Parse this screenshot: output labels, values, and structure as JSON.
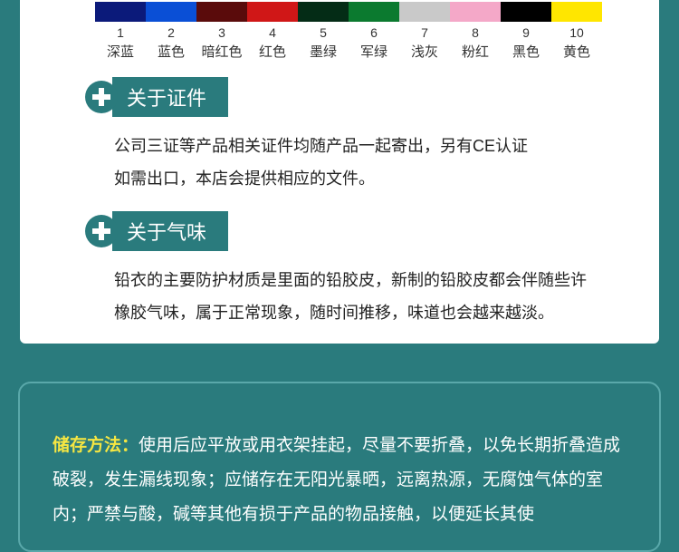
{
  "colors": {
    "swatches": [
      {
        "num": "1",
        "name": "深蓝",
        "hex": "#0b1a7a"
      },
      {
        "num": "2",
        "name": "蓝色",
        "hex": "#0a4fd6"
      },
      {
        "num": "3",
        "name": "暗红色",
        "hex": "#5a0b0b"
      },
      {
        "num": "4",
        "name": "红色",
        "hex": "#d01717"
      },
      {
        "num": "5",
        "name": "墨绿",
        "hex": "#042c16"
      },
      {
        "num": "6",
        "name": "军绿",
        "hex": "#0b7a2f"
      },
      {
        "num": "7",
        "name": "浅灰",
        "hex": "#c9c9c9"
      },
      {
        "num": "8",
        "name": "粉红",
        "hex": "#f4a8c8"
      },
      {
        "num": "9",
        "name": "黑色",
        "hex": "#000000"
      },
      {
        "num": "10",
        "name": "黄色",
        "hex": "#ffe600"
      }
    ]
  },
  "sections": {
    "cert": {
      "title": "关于证件",
      "body_line1": "公司三证等产品相关证件均随产品一起寄出，另有CE认证",
      "body_line2": "如需出口，本店会提供相应的文件。"
    },
    "smell": {
      "title": "关于气味",
      "body_line1": "铅衣的主要防护材质是里面的铅胶皮，新制的铅胶皮都会伴随些许",
      "body_line2": "橡胶气味，属于正常现象，随时间推移，味道也会越来越淡。"
    }
  },
  "storage": {
    "label": "储存方法：",
    "text": "使用后应平放或用衣架挂起，尽量不要折叠，以免长期折叠造成破裂，发生漏线现象；应储存在无阳光暴晒，远离热源，无腐蚀气体的室内；严禁与酸，碱等其他有损于产品的物品接触，以便延长其使"
  },
  "theme": {
    "bg": "#2a7b7d",
    "panel_bg": "#ffffff",
    "accent": "#2a7b7d",
    "storage_label_color": "#f5e642",
    "storage_text_color": "#ffffff"
  }
}
